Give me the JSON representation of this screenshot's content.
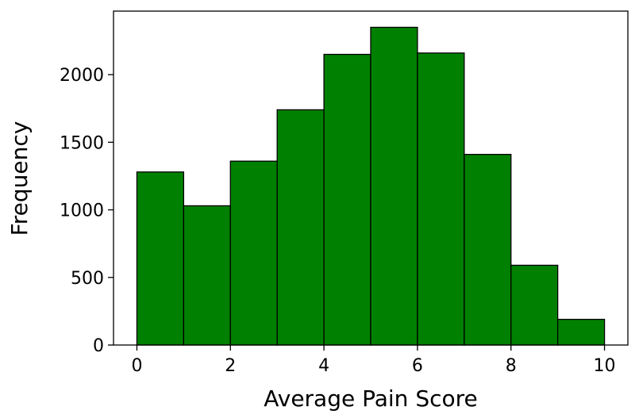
{
  "chart_data": {
    "type": "histogram",
    "x_label": "Average Pain Score",
    "y_label": "Frequency",
    "bins": [
      0,
      1,
      2,
      3,
      4,
      5,
      6,
      7,
      8,
      9,
      10
    ],
    "values": [
      1280,
      1030,
      1360,
      1740,
      2150,
      2350,
      2160,
      1410,
      590,
      190
    ],
    "color": "#008000",
    "edgecolor": "#000000",
    "xlim": [
      -0.5,
      10.5
    ],
    "ylim": [
      0,
      2470
    ],
    "xticks": [
      0,
      2,
      4,
      6,
      8,
      10
    ],
    "yticks": [
      0,
      500,
      1000,
      1500,
      2000
    ]
  }
}
